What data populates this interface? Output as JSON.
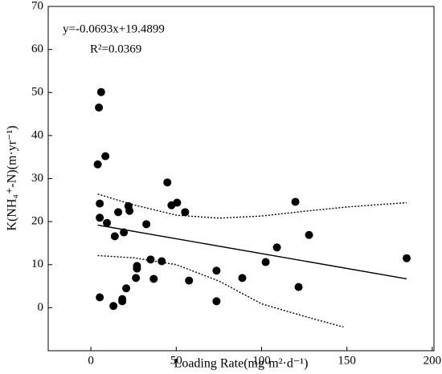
{
  "chart_data": {
    "type": "scatter",
    "x_label": "Loading Rate(mg·m²·d⁻¹)",
    "y_label": "K(NH₄⁺-N)(m·yr⁻¹)",
    "annotations": [
      "y=-0.0693x+19.4899",
      "R²=0.0369"
    ],
    "x": [
      6,
      4.7,
      4,
      8.5,
      5.2,
      5.2,
      9.4,
      16,
      14,
      19.3,
      22,
      22.6,
      20.7,
      18.4,
      18.4,
      13.2,
      5.2,
      26.4,
      27,
      27,
      32.5,
      35,
      36.8,
      41.5,
      44.8,
      47.2,
      50.5,
      55.2,
      57.5,
      73.6,
      73.6,
      88.7,
      102.4,
      109,
      119.8,
      121.7,
      127.8,
      185
    ],
    "values": [
      50.1,
      46.5,
      33.3,
      35.2,
      24.2,
      20.9,
      19.7,
      22.2,
      16.6,
      17.5,
      23.6,
      22.5,
      4.5,
      1.5,
      2.0,
      0.4,
      2.4,
      6.9,
      9.7,
      9.1,
      19.4,
      11.2,
      6.7,
      10.8,
      29.1,
      23.8,
      24.4,
      22.2,
      6.3,
      8.6,
      1.5,
      6.9,
      10.6,
      14.0,
      24.6,
      4.8,
      16.9,
      11.5
    ],
    "color": "#000000",
    "fit_line": {
      "x": [
        4,
        185
      ],
      "y": [
        19.2,
        6.7
      ]
    },
    "upper_band": {
      "x": [
        4,
        25,
        50,
        75,
        100,
        125,
        150,
        185
      ],
      "y": [
        26.4,
        23.9,
        21.5,
        20.8,
        21.3,
        22.4,
        23.4,
        24.4
      ]
    },
    "lower_band": {
      "x": [
        4,
        25,
        50,
        75,
        100,
        125,
        148
      ],
      "y": [
        12.1,
        11.6,
        10.0,
        6.2,
        0.9,
        -2.0,
        -4.5
      ]
    },
    "xlim": [
      -25,
      201
    ],
    "ylim": [
      -10,
      70
    ],
    "xticks": [
      0,
      50,
      100,
      150,
      200
    ],
    "yticks": [
      0,
      10,
      20,
      30,
      40,
      50,
      60,
      70
    ]
  }
}
